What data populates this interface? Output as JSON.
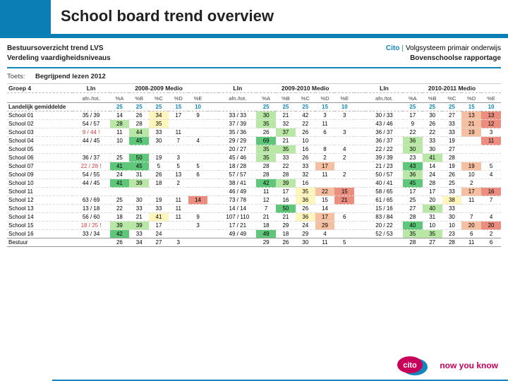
{
  "title": "School board trend overview",
  "head": {
    "l1": "Bestuursoverzicht trend LVS",
    "l2": "Verdeling vaardigheidsniveaus",
    "brand": "Cito",
    "brandSub": "Volgsysteem primair onderwijs",
    "rSub": "Bovenschoolse rapportage"
  },
  "toets": {
    "lbl": "Toets:",
    "val": "Begrijpend lezen 2012"
  },
  "group": "Groep 4",
  "cols": {
    "lin": "Lln",
    "aft": "afn./tot.",
    "pct": [
      "%A",
      "%B",
      "%C",
      "%D",
      "%E"
    ]
  },
  "periods": [
    "2008-2009 Medio",
    "2009-2010 Medio",
    "2010-2011 Medio"
  ],
  "natLabel": "Landelijk gemiddelde",
  "nat": [
    25,
    25,
    25,
    15,
    10
  ],
  "hm": {
    "g1": "#5fc77a",
    "g2": "#b9e8a6",
    "y": "#fff6bd",
    "o": "#f5bfa1",
    "r": "#eb8e80",
    "none": ""
  },
  "schools": [
    {
      "n": "School 01",
      "p": [
        {
          "a": "35 / 39",
          "v": [
            14,
            26,
            34,
            17,
            9
          ],
          "c": [
            "",
            "",
            "y",
            "",
            ""
          ]
        },
        {
          "a": "33 / 33",
          "v": [
            30,
            21,
            42,
            3,
            3
          ],
          "c": [
            "g2",
            "",
            "",
            "",
            " "
          ]
        },
        {
          "a": "30 / 33",
          "v": [
            17,
            30,
            27,
            13,
            13
          ],
          "c": [
            "",
            "",
            "",
            "o",
            "r"
          ]
        }
      ]
    },
    {
      "n": "School 02",
      "p": [
        {
          "a": "54 / 57",
          "v": [
            28,
            28,
            35,
            "",
            ""
          ],
          "c": [
            "g2",
            "",
            "y",
            "",
            ""
          ]
        },
        {
          "a": "37 / 39",
          "v": [
            35,
            32,
            22,
            11,
            ""
          ],
          "c": [
            "g2",
            "",
            "",
            "",
            ""
          ]
        },
        {
          "a": "43 / 46",
          "v": [
            9,
            26,
            33,
            21,
            12
          ],
          "c": [
            "",
            "",
            "",
            "o",
            "r"
          ]
        }
      ]
    },
    {
      "n": "School 03",
      "p": [
        {
          "a": "9 /  44 !",
          "v": [
            11,
            44,
            33,
            11,
            ""
          ],
          "c": [
            "",
            "g2",
            "",
            "",
            ""
          ]
        },
        {
          "a": "35 / 36",
          "v": [
            26,
            37,
            26,
            6,
            3
          ],
          "c": [
            "",
            "g2",
            "",
            "",
            ""
          ]
        },
        {
          "a": "36 / 37",
          "v": [
            22,
            22,
            33,
            19,
            3
          ],
          "c": [
            "",
            "",
            "",
            "o",
            ""
          ]
        }
      ]
    },
    {
      "n": "School 04",
      "p": [
        {
          "a": "44 / 45",
          "v": [
            10,
            45,
            30,
            7,
            4
          ],
          "c": [
            "",
            "g1",
            "",
            "",
            ""
          ]
        },
        {
          "a": "29 / 29",
          "v": [
            69,
            21,
            10,
            "",
            ""
          ],
          "c": [
            "g1",
            "",
            "",
            "",
            ""
          ]
        },
        {
          "a": "36 / 37",
          "v": [
            36,
            33,
            19,
            "",
            11
          ],
          "c": [
            "g2",
            "",
            "",
            "",
            "r"
          ]
        }
      ]
    },
    {
      "n": "School 05",
      "p": [
        {
          "a": "",
          "v": [
            "",
            "",
            "",
            "",
            ""
          ],
          "c": [
            "",
            "",
            "",
            "",
            ""
          ]
        },
        {
          "a": "20 / 27",
          "v": [
            35,
            35,
            16,
            8,
            4
          ],
          "c": [
            "g2",
            "g2",
            "",
            "",
            ""
          ]
        },
        {
          "a": "22 / 22",
          "v": [
            30,
            30,
            27,
            "",
            ""
          ],
          "c": [
            "g2",
            "",
            "",
            "",
            ""
          ]
        }
      ]
    },
    {
      "n": "School 06",
      "p": [
        {
          "a": "36 / 37",
          "v": [
            25,
            50,
            19,
            3,
            ""
          ],
          "c": [
            "",
            "g1",
            "",
            "",
            ""
          ]
        },
        {
          "a": "45 / 46",
          "v": [
            35,
            33,
            26,
            2,
            2
          ],
          "c": [
            "g2",
            "",
            "",
            "",
            ""
          ]
        },
        {
          "a": "39 / 39",
          "v": [
            23,
            41,
            28,
            "",
            ""
          ],
          "c": [
            "",
            "g2",
            "",
            "",
            ""
          ]
        }
      ]
    },
    {
      "n": "School 07",
      "p": [
        {
          "a": "22 /  28 !",
          "v": [
            41,
            45,
            5,
            5,
            5
          ],
          "c": [
            "g1",
            "g1",
            "",
            "",
            ""
          ]
        },
        {
          "a": "18 / 28",
          "v": [
            28,
            22,
            33,
            17,
            ""
          ],
          "c": [
            "",
            "",
            "",
            "o",
            ""
          ]
        },
        {
          "a": "21 / 23",
          "v": [
            43,
            14,
            19,
            19,
            5
          ],
          "c": [
            "g1",
            "",
            "",
            "o",
            ""
          ]
        }
      ]
    },
    {
      "n": "School 09",
      "p": [
        {
          "a": "54 / 55",
          "v": [
            24,
            31,
            26,
            13,
            6
          ],
          "c": [
            "",
            "",
            "",
            "",
            ""
          ]
        },
        {
          "a": "57 / 57",
          "v": [
            28,
            28,
            32,
            11,
            2
          ],
          "c": [
            "",
            "",
            "",
            "",
            ""
          ]
        },
        {
          "a": "50 / 57",
          "v": [
            36,
            24,
            26,
            10,
            4
          ],
          "c": [
            "g2",
            "",
            "",
            "",
            ""
          ]
        }
      ]
    },
    {
      "n": "School 10",
      "p": [
        {
          "a": "44 / 45",
          "v": [
            41,
            39,
            18,
            2,
            ""
          ],
          "c": [
            "g1",
            "g2",
            "",
            "",
            ""
          ]
        },
        {
          "a": "38 / 41",
          "v": [
            42,
            39,
            16,
            "",
            ""
          ],
          "c": [
            "g1",
            "g2",
            "",
            "",
            ""
          ]
        },
        {
          "a": "40 / 41",
          "v": [
            45,
            28,
            25,
            2,
            ""
          ],
          "c": [
            "g1",
            "",
            "",
            "",
            ""
          ]
        }
      ]
    },
    {
      "n": "School 11",
      "p": [
        {
          "a": "",
          "v": [
            "",
            "",
            "",
            "",
            ""
          ],
          "c": [
            "",
            "",
            "",
            "",
            ""
          ]
        },
        {
          "a": "46 / 49",
          "v": [
            11,
            17,
            35,
            22,
            15
          ],
          "c": [
            "",
            "",
            "y",
            "o",
            "r"
          ]
        },
        {
          "a": "58 / 65",
          "v": [
            17,
            17,
            33,
            17,
            16
          ],
          "c": [
            "",
            "",
            "",
            "o",
            "r"
          ]
        }
      ]
    },
    {
      "n": "School 12",
      "p": [
        {
          "a": "63 / 69",
          "v": [
            25,
            30,
            19,
            11,
            14
          ],
          "c": [
            "",
            "",
            "",
            "",
            "r"
          ]
        },
        {
          "a": "73 / 78",
          "v": [
            12,
            16,
            36,
            15,
            21
          ],
          "c": [
            "",
            "",
            "y",
            "",
            "r"
          ]
        },
        {
          "a": "61 / 65",
          "v": [
            25,
            20,
            38,
            11,
            7
          ],
          "c": [
            "",
            "",
            "y",
            "",
            ""
          ]
        }
      ]
    },
    {
      "n": "School 13",
      "p": [
        {
          "a": "13 / 18",
          "v": [
            22,
            33,
            33,
            11,
            ""
          ],
          "c": [
            "",
            "",
            "",
            "",
            ""
          ]
        },
        {
          "a": "14 / 14",
          "v": [
            7,
            50,
            26,
            14,
            ""
          ],
          "c": [
            "",
            "g1",
            "",
            "",
            ""
          ]
        },
        {
          "a": "15 / 16",
          "v": [
            27,
            40,
            33,
            "",
            ""
          ],
          "c": [
            "",
            "g2",
            "",
            "",
            ""
          ]
        }
      ]
    },
    {
      "n": "School 14",
      "p": [
        {
          "a": "56 / 60",
          "v": [
            18,
            21,
            41,
            11,
            9
          ],
          "c": [
            "",
            "",
            "y",
            "",
            ""
          ]
        },
        {
          "a": "107 / 110",
          "v": [
            21,
            21,
            36,
            17,
            6
          ],
          "c": [
            "",
            "",
            "y",
            "o",
            ""
          ]
        },
        {
          "a": "83 / 84",
          "v": [
            28,
            31,
            30,
            7,
            4
          ],
          "c": [
            "",
            "",
            "",
            "",
            ""
          ]
        }
      ]
    },
    {
      "n": "School 15",
      "p": [
        {
          "a": "18 /  25 !",
          "v": [
            39,
            39,
            17,
            "",
            3
          ],
          "c": [
            "g2",
            "g2",
            "",
            "",
            ""
          ]
        },
        {
          "a": "17 / 21",
          "v": [
            18,
            29,
            24,
            29,
            ""
          ],
          "c": [
            "",
            "",
            "",
            "o",
            ""
          ]
        },
        {
          "a": "20 / 22",
          "v": [
            40,
            10,
            10,
            20,
            20
          ],
          "c": [
            "g1",
            "",
            "",
            "o",
            "r"
          ]
        }
      ]
    },
    {
      "n": "School 16",
      "p": [
        {
          "a": "33 / 34",
          "v": [
            42,
            33,
            24,
            "",
            ""
          ],
          "c": [
            "g1",
            "",
            "",
            "",
            ""
          ]
        },
        {
          "a": "49 / 49",
          "v": [
            49,
            18,
            29,
            4,
            ""
          ],
          "c": [
            "g1",
            "",
            "",
            "",
            ""
          ]
        },
        {
          "a": "52 / 53",
          "v": [
            35,
            35,
            23,
            6,
            2
          ],
          "c": [
            "g2",
            "g2",
            "",
            "",
            ""
          ]
        }
      ]
    }
  ],
  "bestuur": {
    "n": "Bestuur",
    "p": [
      {
        "a": "",
        "v": [
          26,
          34,
          27,
          3,
          ""
        ],
        "c": [
          "",
          "",
          "",
          "",
          ""
        ]
      },
      {
        "a": "",
        "v": [
          29,
          26,
          30,
          11,
          5
        ],
        "c": [
          "",
          "",
          "",
          "",
          ""
        ]
      },
      {
        "a": "",
        "v": [
          28,
          27,
          28,
          11,
          6
        ],
        "c": [
          "",
          "",
          "",
          "",
          ""
        ]
      }
    ]
  },
  "footerTag": "now you know"
}
